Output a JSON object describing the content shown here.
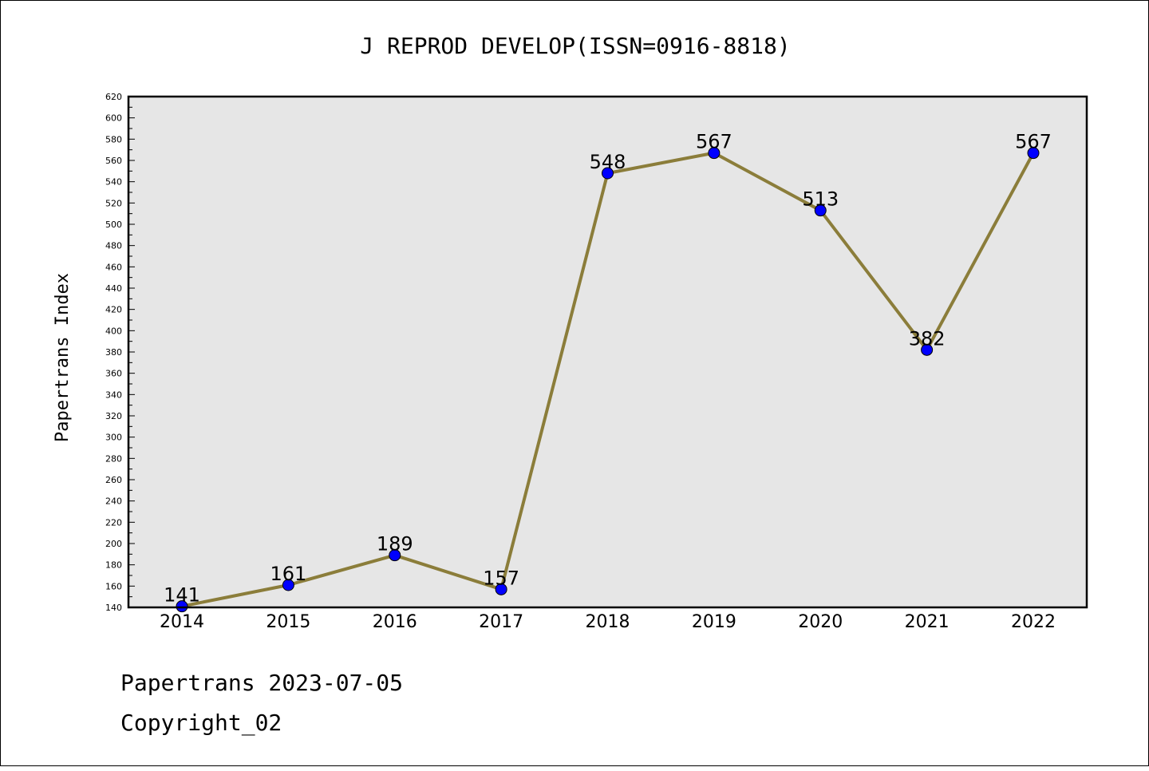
{
  "chart_data": {
    "type": "line",
    "title": "J REPROD DEVELOP(ISSN=0916-8818)",
    "xlabel": "",
    "ylabel": "Papertrans Index",
    "categories": [
      "2014",
      "2015",
      "2016",
      "2017",
      "2018",
      "2019",
      "2020",
      "2021",
      "2022"
    ],
    "series": [
      {
        "values": [
          141,
          161,
          189,
          157,
          548,
          567,
          513,
          382,
          567
        ]
      }
    ],
    "data_labels": [
      "141",
      "161",
      "189",
      "157",
      "548",
      "567",
      "513",
      "382",
      "567"
    ],
    "ylim": [
      140,
      620
    ],
    "yticks": [
      140,
      160,
      180,
      200,
      220,
      240,
      260,
      280,
      300,
      320,
      340,
      360,
      380,
      400,
      420,
      440,
      460,
      480,
      500,
      520,
      540,
      560,
      580,
      600,
      620
    ],
    "grid": false,
    "line_color": "#8b7d3a",
    "marker_color": "#0000ff",
    "plot_background": "#e6e6e6"
  },
  "footer": {
    "line1": "Papertrans 2023-07-05",
    "line2": "Copyright_02"
  }
}
